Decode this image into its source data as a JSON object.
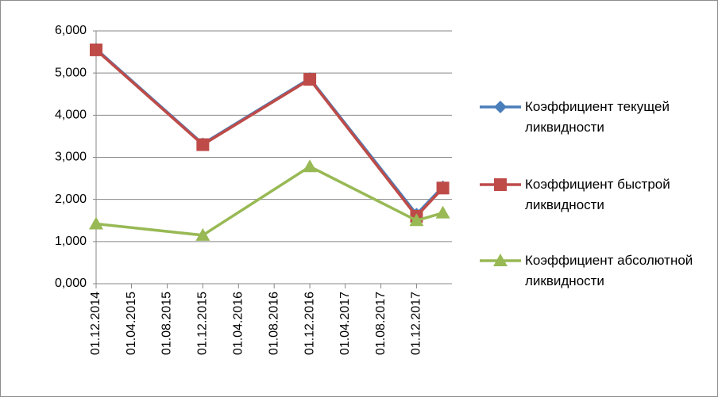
{
  "chart_data": {
    "type": "line",
    "x": [
      "01.12.2014",
      "01.12.2015",
      "01.12.2016",
      "01.12.2017",
      "01.03.2018"
    ],
    "series": [
      {
        "name": "Коэффициент текущей ликвидности",
        "color": "#4a7ebb",
        "marker": "diamond",
        "values": [
          5.57,
          3.32,
          4.87,
          1.65,
          2.3
        ]
      },
      {
        "name": "Коэффициент быстрой ликвидности",
        "color": "#be4b48",
        "marker": "square",
        "values": [
          5.55,
          3.3,
          4.85,
          1.6,
          2.27
        ]
      },
      {
        "name": "Коэффициент абсолютной ликвидности",
        "color": "#98b954",
        "marker": "triangle",
        "values": [
          1.42,
          1.15,
          2.78,
          1.5,
          1.68
        ]
      }
    ],
    "xlim": [
      "01.12.2014",
      "01.04.2018"
    ],
    "xticks": [
      "01.12.2014",
      "01.04.2015",
      "01.08.2015",
      "01.12.2015",
      "01.04.2016",
      "01.08.2016",
      "01.12.2016",
      "01.04.2017",
      "01.08.2017",
      "01.12.2017"
    ],
    "ylim": [
      0,
      6
    ],
    "yticks": [
      {
        "value": 0,
        "label": "0,000"
      },
      {
        "value": 1,
        "label": "1,000"
      },
      {
        "value": 2,
        "label": "2,000"
      },
      {
        "value": 3,
        "label": "3,000"
      },
      {
        "value": 4,
        "label": "4,000"
      },
      {
        "value": 5,
        "label": "5,000"
      },
      {
        "value": 6,
        "label": "6,000"
      }
    ],
    "grid": true,
    "legend": "right"
  }
}
